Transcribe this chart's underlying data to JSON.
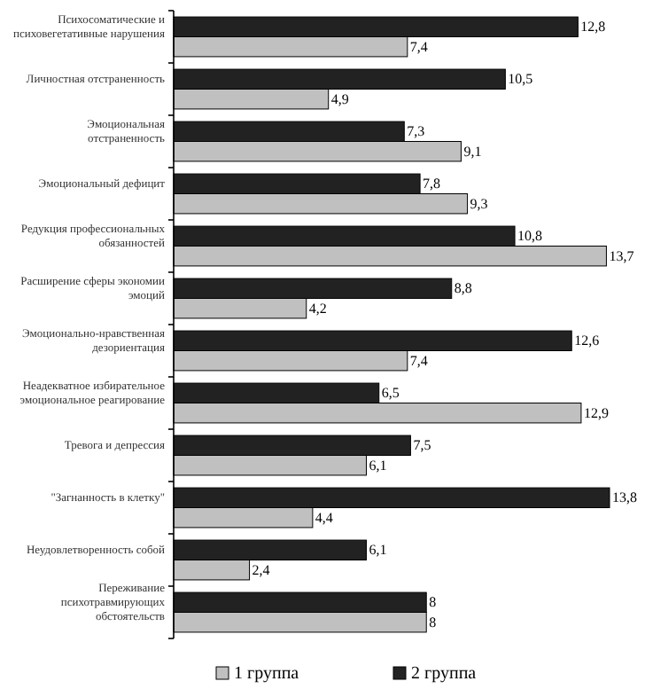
{
  "chart_data": {
    "type": "bar",
    "orientation": "horizontal",
    "categories": [
      "Психосоматические и психовегетативные нарушения",
      "Личностная отстраненность",
      "Эмоциональная отстраненность",
      "Эмоциональный дефицит",
      "Редукция профессиональных обязанностей",
      "Расширение сферы экономии эмоций",
      "Эмоционально-нравственная дезориентация",
      "Неадекватное избирательное эмоциональное реагирование",
      "Тревога и депрессия",
      "\"Загнанность в клетку\"",
      "Неудовлетворенность собой",
      "Переживание психотравмирующих обстоятельств"
    ],
    "series": [
      {
        "name": "1 группа",
        "color": "#c0c0c0",
        "values": [
          7.4,
          4.9,
          9.1,
          9.3,
          13.7,
          4.2,
          7.4,
          12.9,
          6.1,
          4.4,
          2.4,
          8
        ],
        "value_labels": [
          "7,4",
          "4,9",
          "9,1",
          "9,3",
          "13,7",
          "4,2",
          "7,4",
          "12,9",
          "6,1",
          "4,4",
          "2,4",
          "8"
        ]
      },
      {
        "name": "2 группа",
        "color": "#222222",
        "values": [
          12.8,
          10.5,
          7.3,
          7.8,
          10.8,
          8.8,
          12.6,
          6.5,
          7.5,
          13.8,
          6.1,
          8
        ],
        "value_labels": [
          "12,8",
          "10,5",
          "7,3",
          "7,8",
          "10,8",
          "8,8",
          "12,6",
          "6,5",
          "7,5",
          "13,8",
          "6,1",
          "8"
        ]
      }
    ],
    "legend": "bottom"
  }
}
